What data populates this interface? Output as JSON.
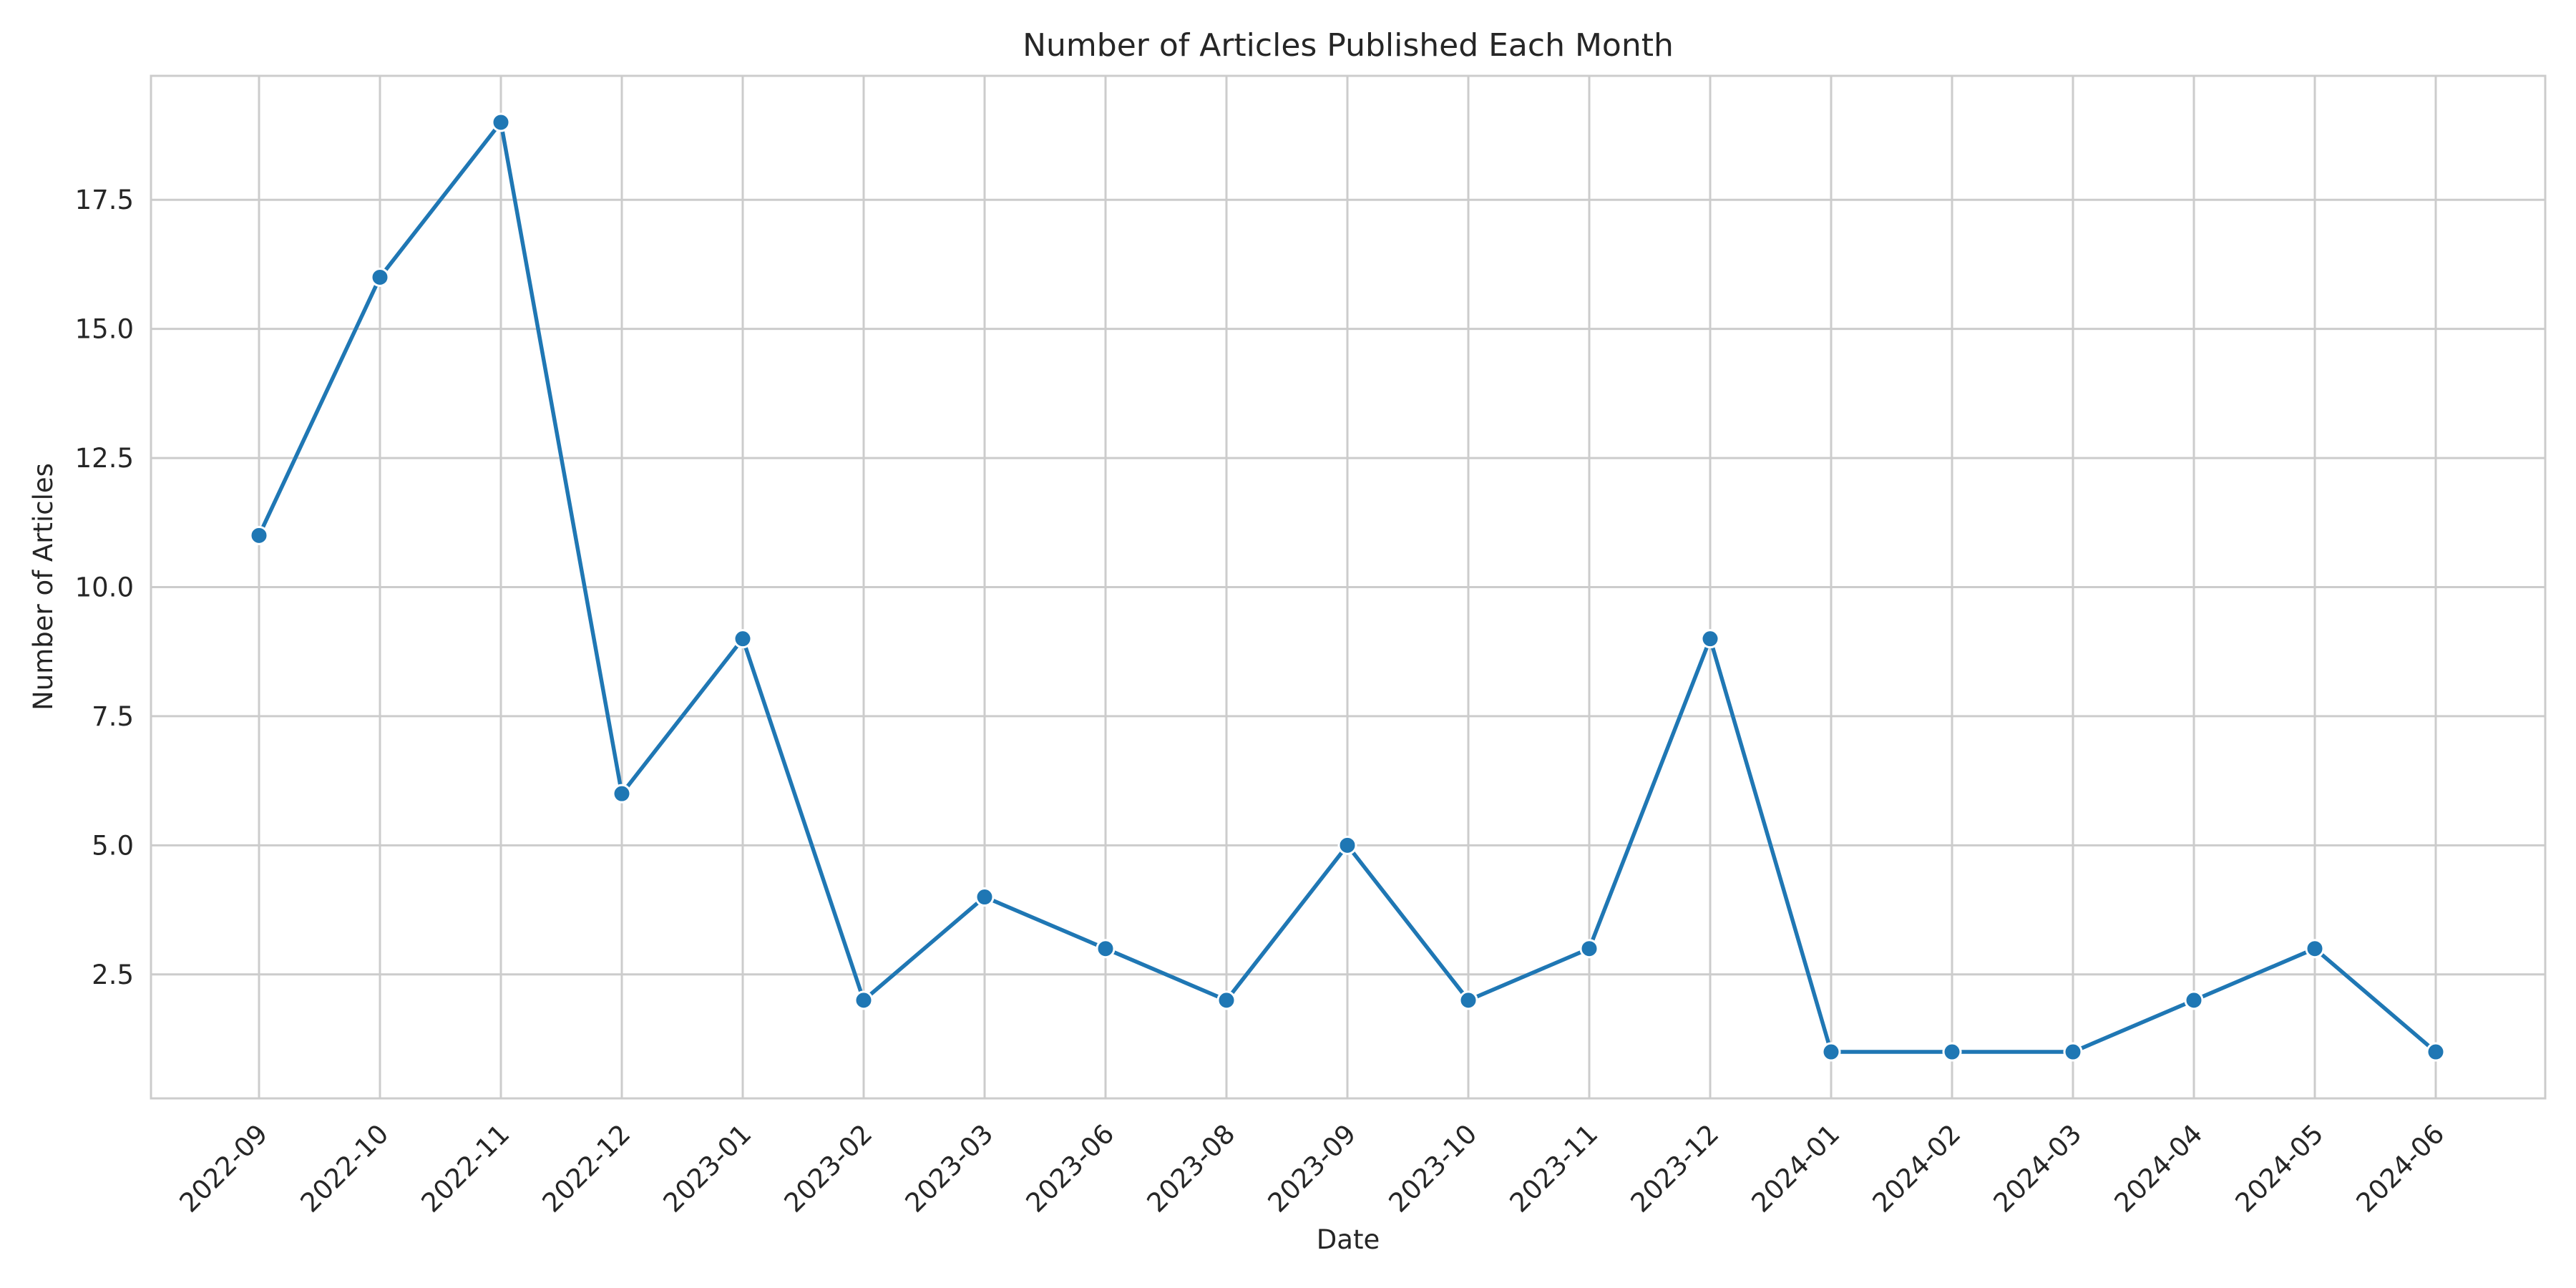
{
  "chart_data": {
    "type": "line",
    "title": "Number of Articles Published Each Month",
    "xlabel": "Date",
    "ylabel": "Number of Articles",
    "categories": [
      "2022-09",
      "2022-10",
      "2022-11",
      "2022-12",
      "2023-01",
      "2023-02",
      "2023-03",
      "2023-06",
      "2023-08",
      "2023-09",
      "2023-10",
      "2023-11",
      "2023-12",
      "2024-01",
      "2024-02",
      "2024-03",
      "2024-04",
      "2024-05",
      "2024-06"
    ],
    "series": [
      {
        "values": [
          11,
          16,
          19,
          6,
          9,
          2,
          4,
          3,
          2,
          5,
          2,
          3,
          9,
          1,
          1,
          1,
          2,
          3,
          1
        ]
      }
    ],
    "yticks": [
      "2.5",
      "5.0",
      "7.5",
      "10.0",
      "12.5",
      "15.0",
      "17.5"
    ],
    "ylim": [
      0.1,
      19.9
    ],
    "grid": true,
    "line_color": "#1f77b4",
    "grid_color": "#cccccc"
  }
}
